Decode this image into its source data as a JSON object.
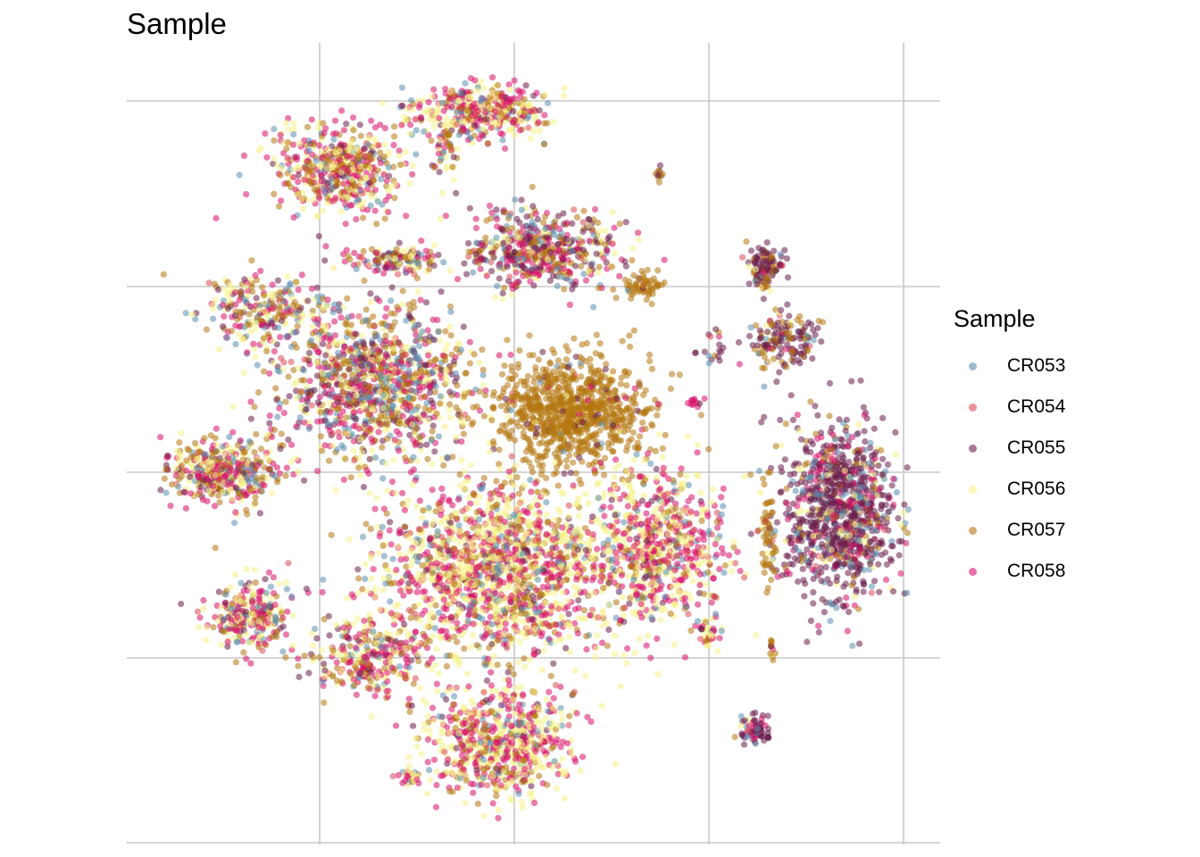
{
  "chart_data": {
    "type": "scatter",
    "title": "Sample",
    "xlabel": "",
    "ylabel": "",
    "grid": true,
    "axis_ticks_labels": false,
    "legend": {
      "title": "Sample",
      "position": "right",
      "entries": [
        {
          "name": "CR053",
          "color": "#5B8FB0"
        },
        {
          "name": "CR054",
          "color": "#DC4B57"
        },
        {
          "name": "CR055",
          "color": "#6A1E4B"
        },
        {
          "name": "CR056",
          "color": "#F6F28A"
        },
        {
          "name": "CR057",
          "color": "#B5760F"
        },
        {
          "name": "CR058",
          "color": "#D8106A"
        }
      ]
    }
  }
}
